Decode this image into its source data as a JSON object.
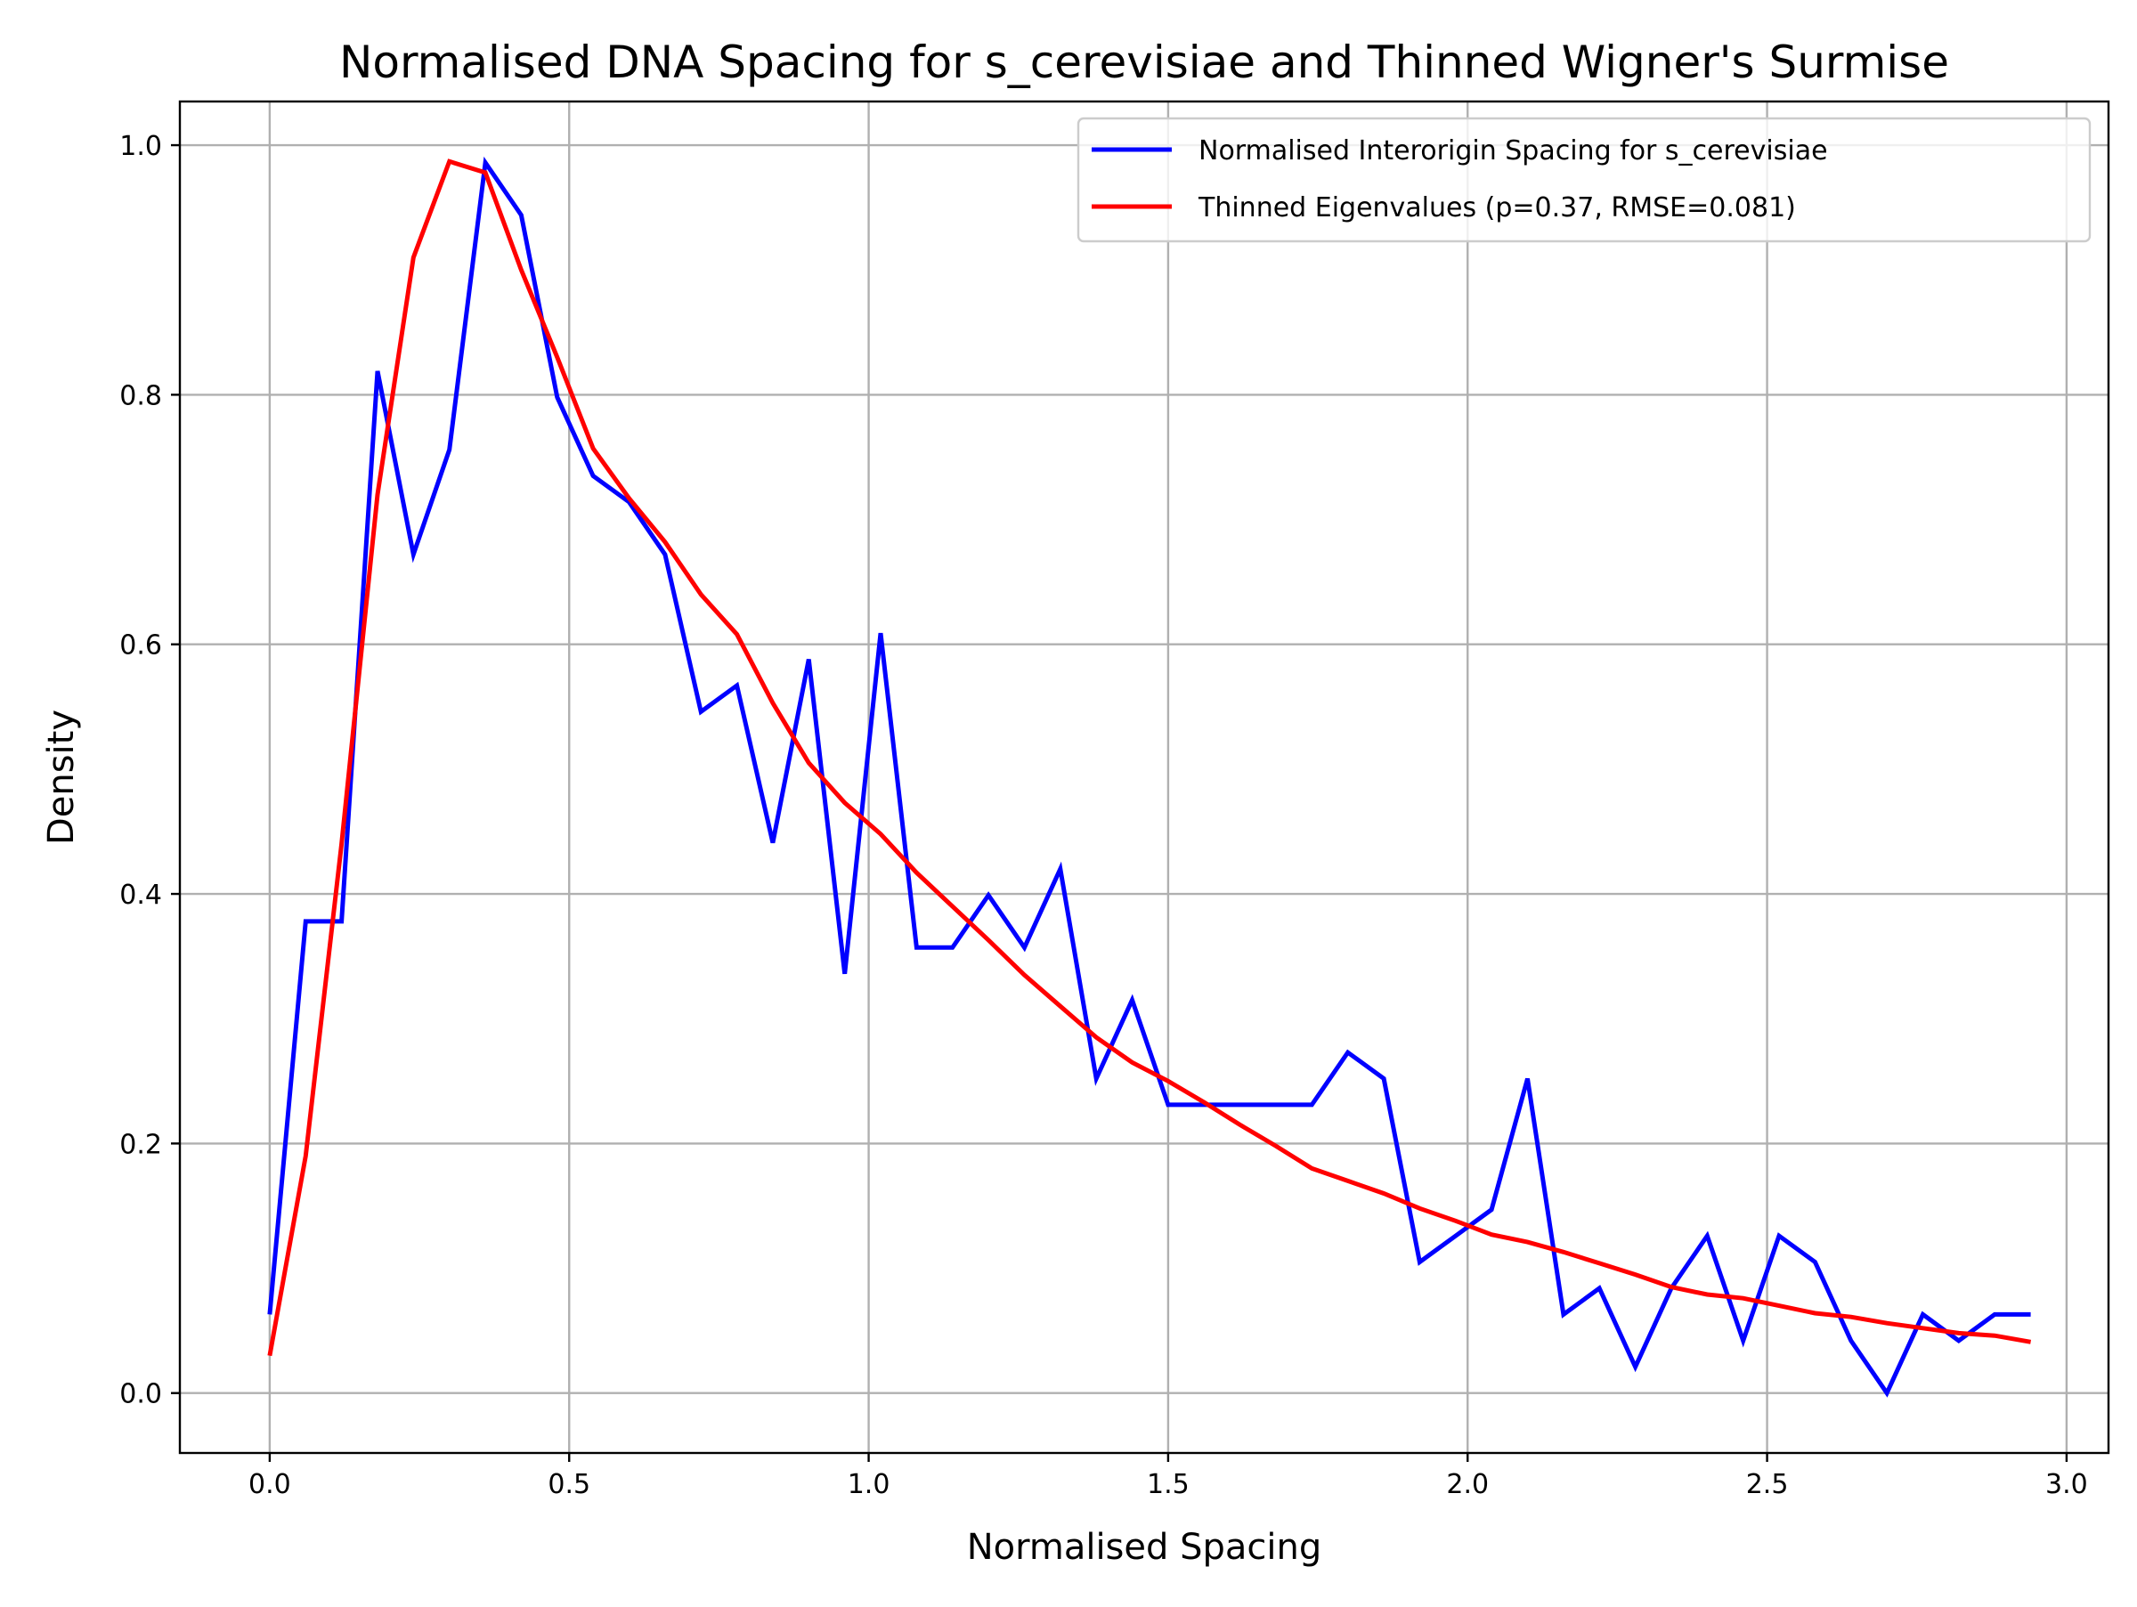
{
  "chart_data": {
    "type": "line",
    "title": "Normalised DNA Spacing for s_cerevisiae and Thinned Wigner's Surmise",
    "xlabel": "Normalised Spacing",
    "ylabel": "Density",
    "xlim": [
      -0.15,
      3.07
    ],
    "ylim": [
      -0.048,
      1.035
    ],
    "grid": true,
    "legend_position": "upper right",
    "xticks": [
      0.0,
      0.5,
      1.0,
      1.5,
      2.0,
      2.5,
      3.0
    ],
    "xtick_labels": [
      "0.0",
      "0.5",
      "1.0",
      "1.5",
      "2.0",
      "2.5",
      "3.0"
    ],
    "yticks": [
      0.0,
      0.2,
      0.4,
      0.6,
      0.8,
      1.0
    ],
    "ytick_labels": [
      "0.0",
      "0.2",
      "0.4",
      "0.6",
      "0.8",
      "1.0"
    ],
    "x": [
      0.0,
      0.06,
      0.12,
      0.18,
      0.24,
      0.3,
      0.36,
      0.42,
      0.48,
      0.54,
      0.6,
      0.66,
      0.72,
      0.78,
      0.84,
      0.9,
      0.96,
      1.02,
      1.08,
      1.14,
      1.2,
      1.26,
      1.32,
      1.38,
      1.44,
      1.5,
      1.56,
      1.62,
      1.68,
      1.74,
      1.8,
      1.86,
      1.92,
      1.98,
      2.04,
      2.1,
      2.16,
      2.22,
      2.28,
      2.34,
      2.4,
      2.46,
      2.52,
      2.58,
      2.64,
      2.7,
      2.76,
      2.82,
      2.88,
      2.94
    ],
    "series": [
      {
        "name": "Normalised Interorigin Spacing for s_cerevisiae",
        "color": "#0000ff",
        "values": [
          0.063,
          0.378,
          0.378,
          0.819,
          0.672,
          0.756,
          0.986,
          0.944,
          0.798,
          0.735,
          0.714,
          0.672,
          0.546,
          0.567,
          0.441,
          0.588,
          0.336,
          0.609,
          0.357,
          0.357,
          0.399,
          0.357,
          0.42,
          0.252,
          0.315,
          0.231,
          0.231,
          0.231,
          0.231,
          0.231,
          0.273,
          0.252,
          0.105,
          0.126,
          0.147,
          0.252,
          0.063,
          0.084,
          0.021,
          0.084,
          0.126,
          0.042,
          0.126,
          0.105,
          0.042,
          0.0,
          0.063,
          0.042,
          0.063,
          0.063
        ]
      },
      {
        "name": "Thinned Eigenvalues (p=0.37, RMSE=0.081)",
        "color": "#ff0000",
        "values": [
          0.03,
          0.19,
          0.44,
          0.72,
          0.91,
          0.987,
          0.978,
          0.9,
          0.83,
          0.757,
          0.717,
          0.682,
          0.64,
          0.608,
          0.553,
          0.505,
          0.473,
          0.448,
          0.417,
          0.39,
          0.363,
          0.335,
          0.31,
          0.285,
          0.265,
          0.25,
          0.233,
          0.215,
          0.198,
          0.18,
          0.17,
          0.16,
          0.148,
          0.138,
          0.127,
          0.121,
          0.113,
          0.104,
          0.095,
          0.085,
          0.079,
          0.076,
          0.07,
          0.064,
          0.061,
          0.056,
          0.052,
          0.048,
          0.046,
          0.041
        ]
      }
    ]
  }
}
